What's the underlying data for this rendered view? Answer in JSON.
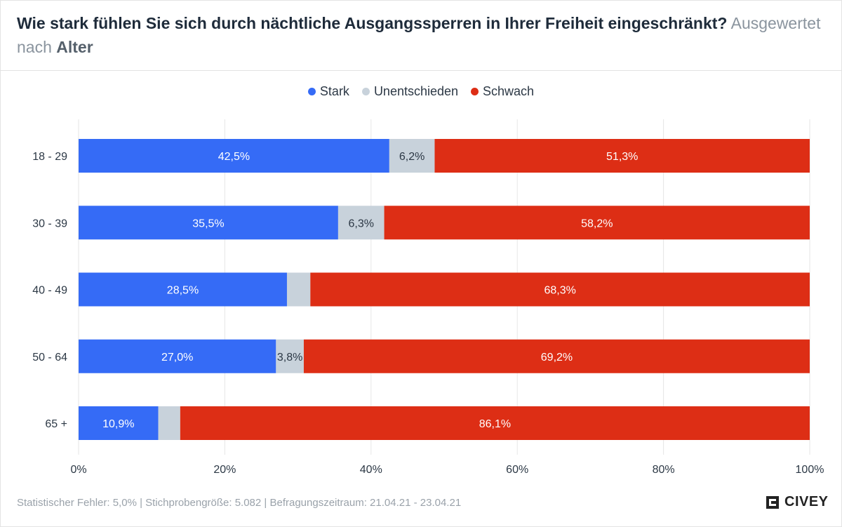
{
  "title": {
    "main": "Wie stark fühlen Sie sich durch nächtliche Ausgangssperren in Ihrer Freiheit eingeschränkt?",
    "sub": "Ausgewertet nach",
    "key": "Alter"
  },
  "colors": {
    "stark": "#356bf6",
    "unentschieden": "#c8d2db",
    "schwach": "#dd2e15",
    "grid": "#e6e6e6"
  },
  "chart_data": {
    "type": "bar",
    "orientation": "horizontal",
    "stacked": true,
    "title": "Wie stark fühlen Sie sich durch nächtliche Ausgangssperren in Ihrer Freiheit eingeschränkt? Ausgewertet nach Alter",
    "categories": [
      "18 - 29",
      "30 - 39",
      "40 - 49",
      "50 - 64",
      "65 +"
    ],
    "series": [
      {
        "name": "Stark",
        "values": [
          42.5,
          35.5,
          28.5,
          27.0,
          10.9
        ],
        "labels": [
          "42,5%",
          "35,5%",
          "28,5%",
          "27,0%",
          "10,9%"
        ]
      },
      {
        "name": "Unentschieden",
        "values": [
          6.2,
          6.3,
          3.2,
          3.8,
          3.0
        ],
        "labels": [
          "6,2%",
          "6,3%",
          "",
          "3,8%",
          ""
        ]
      },
      {
        "name": "Schwach",
        "values": [
          51.3,
          58.2,
          68.3,
          69.2,
          86.1
        ],
        "labels": [
          "51,3%",
          "58,2%",
          "68,3%",
          "69,2%",
          "86,1%"
        ]
      }
    ],
    "xlim": [
      0,
      100
    ],
    "xticks": [
      0,
      20,
      40,
      60,
      80,
      100
    ],
    "xtick_labels": [
      "0%",
      "20%",
      "40%",
      "60%",
      "80%",
      "100%"
    ],
    "grid": true,
    "legend": "top-center"
  },
  "footer": {
    "note": "Statistischer Fehler: 5,0% | Stichprobengröße: 5.082 | Befragungszeitraum: 21.04.21 - 23.04.21",
    "brand": "CIVEY"
  }
}
